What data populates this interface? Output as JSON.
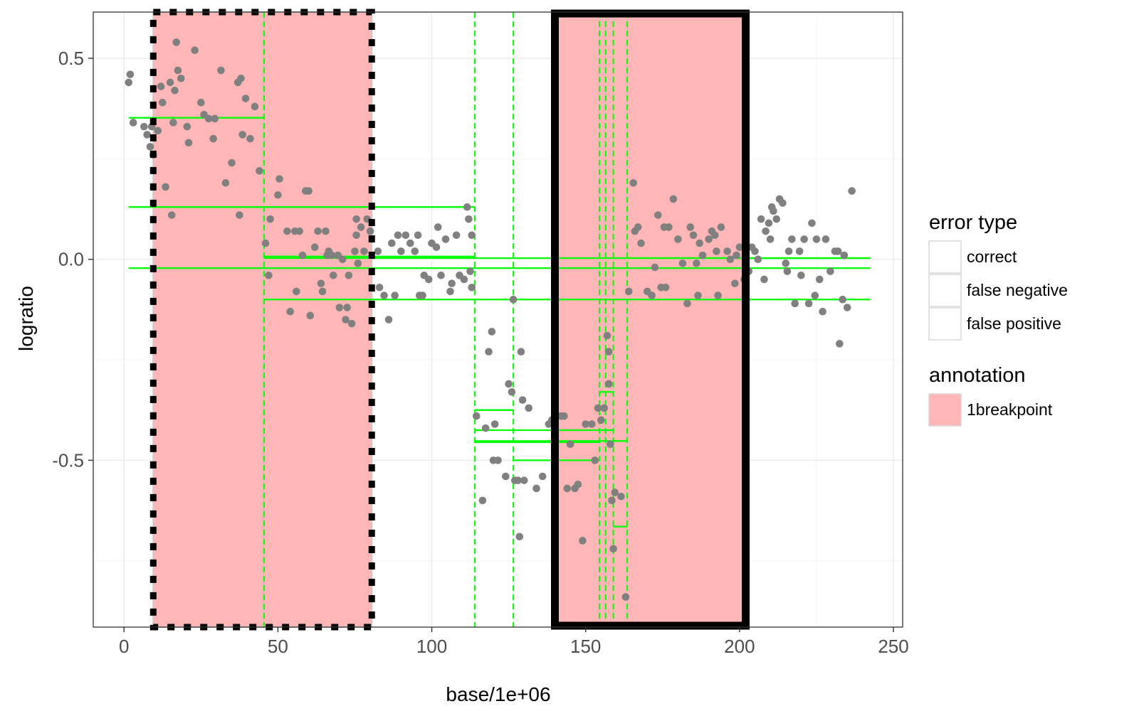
{
  "chart_data": {
    "type": "scatter",
    "xlabel": "base/1e+06",
    "ylabel": "logratio",
    "xlim": [
      -10,
      253
    ],
    "ylim": [
      -0.915,
      0.615
    ],
    "x_ticks": [
      0,
      50,
      100,
      150,
      200,
      250
    ],
    "x_tick_labels": [
      "0",
      "50",
      "100",
      "150",
      "200",
      "250"
    ],
    "y_ticks": [
      0.5,
      0.0,
      -0.5
    ],
    "y_tick_labels": [
      "0.5",
      "0.0",
      "-0.5"
    ],
    "grid": true,
    "colors": {
      "points": "#808080",
      "segments": "#00ff00",
      "annotation_fill": "#ffb6b6",
      "error_border": "#000000"
    },
    "annotations": [
      {
        "label": "1breakpoint",
        "x_start": 9.5,
        "x_end": 80.5,
        "error_type": "false positive"
      },
      {
        "label": "1breakpoint",
        "x_start": 140,
        "x_end": 202,
        "error_type": "false negative"
      }
    ],
    "changepoints_x": [
      45.5,
      114,
      126.5,
      154.5,
      156.5,
      159,
      163.5
    ],
    "segments": [
      {
        "x_start": 1.5,
        "x_end": 45.5,
        "y": 0.352
      },
      {
        "x_start": 45.5,
        "x_end": 242.5,
        "y": 0.003
      },
      {
        "x_start": 1.5,
        "x_end": 114,
        "y": 0.13
      },
      {
        "x_start": 45.5,
        "x_end": 114,
        "y": 0.007
      },
      {
        "x_start": 1.5,
        "x_end": 242.5,
        "y": -0.022
      },
      {
        "x_start": 45.5,
        "x_end": 242.5,
        "y": -0.1
      },
      {
        "x_start": 114,
        "x_end": 126.5,
        "y": -0.375
      },
      {
        "x_start": 114,
        "x_end": 159,
        "y": -0.425
      },
      {
        "x_start": 114,
        "x_end": 163.5,
        "y": -0.452
      },
      {
        "x_start": 114,
        "x_end": 154.5,
        "y": -0.455
      },
      {
        "x_start": 126.5,
        "x_end": 154.5,
        "y": -0.5
      },
      {
        "x_start": 154.5,
        "x_end": 159,
        "y": -0.33
      },
      {
        "x_start": 159,
        "x_end": 163.5,
        "y": -0.665
      },
      {
        "x_start": 163.5,
        "x_end": 242.5,
        "y": 0.003
      }
    ],
    "points": [
      [
        1.5,
        0.44
      ],
      [
        2,
        0.46
      ],
      [
        3,
        0.34
      ],
      [
        6.5,
        0.33
      ],
      [
        7.5,
        0.31
      ],
      [
        8.5,
        0.28
      ],
      [
        9,
        0.33
      ],
      [
        9.5,
        0.26
      ],
      [
        11,
        0.32
      ],
      [
        12,
        0.43
      ],
      [
        12.5,
        0.39
      ],
      [
        13.5,
        0.18
      ],
      [
        15,
        0.44
      ],
      [
        15.5,
        0.11
      ],
      [
        16,
        0.34
      ],
      [
        16.5,
        0.42
      ],
      [
        17,
        0.54
      ],
      [
        17.5,
        0.47
      ],
      [
        18.5,
        0.45
      ],
      [
        20.5,
        0.33
      ],
      [
        21,
        0.29
      ],
      [
        23,
        0.52
      ],
      [
        25,
        0.39
      ],
      [
        26,
        0.36
      ],
      [
        27.5,
        0.35
      ],
      [
        29,
        0.3
      ],
      [
        29.5,
        0.35
      ],
      [
        31.5,
        0.47
      ],
      [
        33,
        0.19
      ],
      [
        35,
        0.24
      ],
      [
        37,
        0.44
      ],
      [
        37.5,
        0.11
      ],
      [
        38,
        0.45
      ],
      [
        38.5,
        0.31
      ],
      [
        39.5,
        0.4
      ],
      [
        41,
        0.3
      ],
      [
        42.5,
        0.38
      ],
      [
        44,
        0.22
      ],
      [
        46,
        0.04
      ],
      [
        47,
        -0.04
      ],
      [
        47.5,
        0.1
      ],
      [
        50.5,
        0.2
      ],
      [
        50,
        0.16
      ],
      [
        53,
        0.07
      ],
      [
        54,
        -0.13
      ],
      [
        55.5,
        0.07
      ],
      [
        56,
        -0.08
      ],
      [
        57,
        0.07
      ],
      [
        58,
        0.01
      ],
      [
        59,
        0.17
      ],
      [
        60,
        0.17
      ],
      [
        60.5,
        -0.14
      ],
      [
        62,
        0.03
      ],
      [
        63,
        0.07
      ],
      [
        64,
        -0.06
      ],
      [
        64.5,
        -0.08
      ],
      [
        65.5,
        0.07
      ],
      [
        66,
        0.01
      ],
      [
        66.5,
        0.02
      ],
      [
        67.5,
        0.01
      ],
      [
        68,
        -0.04
      ],
      [
        69.5,
        0.01
      ],
      [
        70,
        -0.12
      ],
      [
        71,
        0.0
      ],
      [
        72,
        -0.15
      ],
      [
        72.5,
        -0.12
      ],
      [
        73,
        -0.04
      ],
      [
        74,
        -0.16
      ],
      [
        75,
        0.02
      ],
      [
        75.5,
        0.06
      ],
      [
        75.5,
        0.1
      ],
      [
        76,
        -0.01
      ],
      [
        77,
        0.08
      ],
      [
        78,
        0.02
      ],
      [
        79,
        0.1
      ],
      [
        80,
        0.07
      ],
      [
        82.5,
        0.02
      ],
      [
        83,
        -0.07
      ],
      [
        84.5,
        -0.09
      ],
      [
        86,
        -0.15
      ],
      [
        87,
        0.04
      ],
      [
        88,
        -0.09
      ],
      [
        89,
        0.06
      ],
      [
        90,
        0.02
      ],
      [
        91.5,
        0.06
      ],
      [
        93,
        0.04
      ],
      [
        94.5,
        0.02
      ],
      [
        95.5,
        0.06
      ],
      [
        96,
        -0.09
      ],
      [
        97,
        -0.09
      ],
      [
        97.5,
        -0.04
      ],
      [
        99,
        -0.05
      ],
      [
        100,
        0.04
      ],
      [
        101.5,
        0.03
      ],
      [
        102,
        0.08
      ],
      [
        103,
        -0.04
      ],
      [
        104.5,
        0.05
      ],
      [
        106,
        -0.08
      ],
      [
        106.5,
        -0.06
      ],
      [
        108,
        0.06
      ],
      [
        109,
        -0.04
      ],
      [
        110.5,
        -0.05
      ],
      [
        111.5,
        0.13
      ],
      [
        112,
        0.1
      ],
      [
        112.5,
        -0.03
      ],
      [
        113,
        0.06
      ],
      [
        113,
        -0.07
      ],
      [
        114.5,
        -0.39
      ],
      [
        116.5,
        -0.6
      ],
      [
        117.5,
        -0.42
      ],
      [
        118.5,
        -0.23
      ],
      [
        119.5,
        -0.18
      ],
      [
        120,
        -0.5
      ],
      [
        120.5,
        -0.41
      ],
      [
        121.5,
        -0.5
      ],
      [
        124,
        -0.54
      ],
      [
        125,
        -0.31
      ],
      [
        126,
        -0.33
      ],
      [
        126.5,
        -0.1
      ],
      [
        127,
        -0.55
      ],
      [
        128,
        -0.55
      ],
      [
        128.5,
        -0.69
      ],
      [
        129,
        -0.23
      ],
      [
        129.5,
        -0.35
      ],
      [
        130,
        -0.55
      ],
      [
        131.5,
        -0.37
      ],
      [
        134,
        -0.57
      ],
      [
        136,
        -0.54
      ],
      [
        138,
        -0.41
      ],
      [
        139,
        -0.4
      ],
      [
        142,
        -0.39
      ],
      [
        143,
        -0.39
      ],
      [
        144,
        -0.57
      ],
      [
        145,
        -0.46
      ],
      [
        146.5,
        -0.57
      ],
      [
        147.5,
        -0.56
      ],
      [
        149,
        -0.7
      ],
      [
        150,
        -0.41
      ],
      [
        152,
        -0.41
      ],
      [
        153,
        -0.5
      ],
      [
        154,
        -0.37
      ],
      [
        155,
        -0.4
      ],
      [
        156,
        -0.37
      ],
      [
        157,
        -0.19
      ],
      [
        157.5,
        -0.23
      ],
      [
        157.5,
        -0.31
      ],
      [
        158,
        -0.46
      ],
      [
        158.5,
        -0.6
      ],
      [
        159,
        -0.72
      ],
      [
        159.5,
        -0.58
      ],
      [
        161.5,
        -0.59
      ],
      [
        163,
        -0.84
      ],
      [
        164,
        -0.08
      ],
      [
        165.5,
        0.19
      ],
      [
        166,
        0.07
      ],
      [
        167,
        0.08
      ],
      [
        168,
        0.04
      ],
      [
        170,
        -0.08
      ],
      [
        171.5,
        -0.09
      ],
      [
        172.5,
        -0.02
      ],
      [
        173.5,
        0.11
      ],
      [
        174.5,
        -0.07
      ],
      [
        175.5,
        0.08
      ],
      [
        176,
        -0.07
      ],
      [
        177,
        0.08
      ],
      [
        178.5,
        0.15
      ],
      [
        180,
        0.05
      ],
      [
        181.5,
        -0.01
      ],
      [
        183,
        -0.11
      ],
      [
        184,
        0.08
      ],
      [
        185,
        0.06
      ],
      [
        186,
        -0.01
      ],
      [
        186.5,
        -0.09
      ],
      [
        187,
        0.04
      ],
      [
        188,
        0.01
      ],
      [
        190,
        0.05
      ],
      [
        191,
        0.07
      ],
      [
        192,
        0.06
      ],
      [
        192.5,
        0.02
      ],
      [
        193,
        -0.09
      ],
      [
        194,
        0.08
      ],
      [
        196,
        0.02
      ],
      [
        197,
        0.0
      ],
      [
        198.5,
        -0.06
      ],
      [
        199,
        0.01
      ],
      [
        200,
        0.03
      ],
      [
        201.5,
        -0.05
      ],
      [
        203,
        -0.03
      ],
      [
        204,
        0.03
      ],
      [
        205,
        0.02
      ],
      [
        206,
        0.0
      ],
      [
        207,
        0.1
      ],
      [
        208,
        -0.05
      ],
      [
        208.5,
        0.07
      ],
      [
        209.5,
        0.09
      ],
      [
        210,
        0.05
      ],
      [
        210.5,
        0.13
      ],
      [
        211,
        0.12
      ],
      [
        212,
        0.1
      ],
      [
        213,
        0.15
      ],
      [
        214,
        0.14
      ],
      [
        215,
        -0.01
      ],
      [
        215.5,
        -0.03
      ],
      [
        216,
        0.02
      ],
      [
        217,
        0.05
      ],
      [
        218,
        -0.11
      ],
      [
        219.5,
        0.02
      ],
      [
        220,
        -0.04
      ],
      [
        221,
        0.05
      ],
      [
        222.5,
        -0.11
      ],
      [
        223.5,
        0.09
      ],
      [
        224.5,
        -0.09
      ],
      [
        225,
        0.05
      ],
      [
        226,
        -0.05
      ],
      [
        227,
        -0.13
      ],
      [
        228,
        0.05
      ],
      [
        229.5,
        -0.03
      ],
      [
        231,
        0.02
      ],
      [
        232,
        0.02
      ],
      [
        232.5,
        -0.21
      ],
      [
        233.5,
        -0.1
      ],
      [
        234,
        0.01
      ],
      [
        235,
        -0.12
      ],
      [
        236.5,
        0.17
      ]
    ]
  },
  "axes": {
    "x_title": "base/1e+06",
    "y_title": "logratio",
    "x_ticks": [
      "0",
      "50",
      "100",
      "150",
      "200",
      "250"
    ],
    "y_ticks": [
      "0.5",
      "0.0",
      "-0.5"
    ]
  },
  "legend": {
    "error_type_title": "error type",
    "error_type_items": [
      "correct",
      "false negative",
      "false positive"
    ],
    "annotation_title": "annotation",
    "annotation_items": [
      "1breakpoint"
    ]
  }
}
